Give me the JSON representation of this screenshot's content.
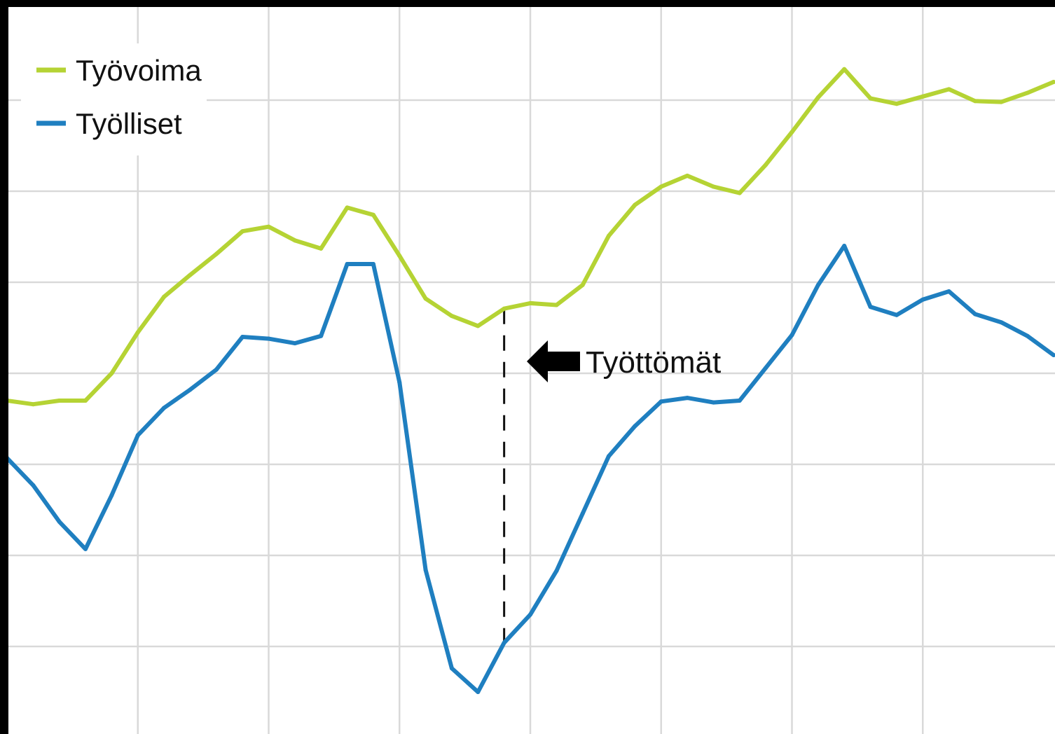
{
  "chart_data": {
    "type": "line",
    "title": "",
    "xlabel": "",
    "ylabel": "",
    "x": [
      0,
      1,
      2,
      3,
      4,
      5,
      6,
      7,
      8,
      9,
      10,
      11,
      12,
      13,
      14,
      15,
      16,
      17,
      18,
      19,
      20,
      21,
      22,
      23,
      24,
      25,
      26,
      27,
      28,
      29,
      30,
      31,
      32,
      33,
      34,
      35,
      36,
      37,
      38,
      39,
      40
    ],
    "xlim": [
      0,
      40
    ],
    "ylim": [
      0,
      8
    ],
    "grid": true,
    "legend_position": "top-left",
    "series": [
      {
        "name": "Työvoima",
        "color": "#b5d334",
        "values": [
          3.7,
          3.66,
          3.7,
          3.7,
          4.0,
          4.45,
          4.84,
          5.08,
          5.31,
          5.56,
          5.61,
          5.46,
          5.37,
          5.82,
          5.74,
          5.29,
          4.82,
          4.63,
          4.52,
          4.71,
          4.77,
          4.75,
          4.97,
          5.51,
          5.85,
          6.05,
          6.17,
          6.05,
          5.98,
          6.29,
          6.65,
          7.03,
          7.34,
          7.02,
          6.96,
          7.04,
          7.12,
          6.99,
          6.98,
          7.08,
          7.2
        ]
      },
      {
        "name": "Työlliset",
        "color": "#1f7fc0",
        "values": [
          3.07,
          2.77,
          2.37,
          2.07,
          2.66,
          3.32,
          3.62,
          3.82,
          4.04,
          4.4,
          4.38,
          4.33,
          4.41,
          5.2,
          5.2,
          3.9,
          1.84,
          0.76,
          0.5,
          1.04,
          1.35,
          1.83,
          2.46,
          3.09,
          3.42,
          3.69,
          3.73,
          3.68,
          3.7,
          4.06,
          4.42,
          4.97,
          5.4,
          4.73,
          4.64,
          4.81,
          4.9,
          4.65,
          4.56,
          4.41,
          4.2
        ]
      }
    ],
    "annotation": {
      "label": "Työttömät",
      "x": 19
    }
  }
}
